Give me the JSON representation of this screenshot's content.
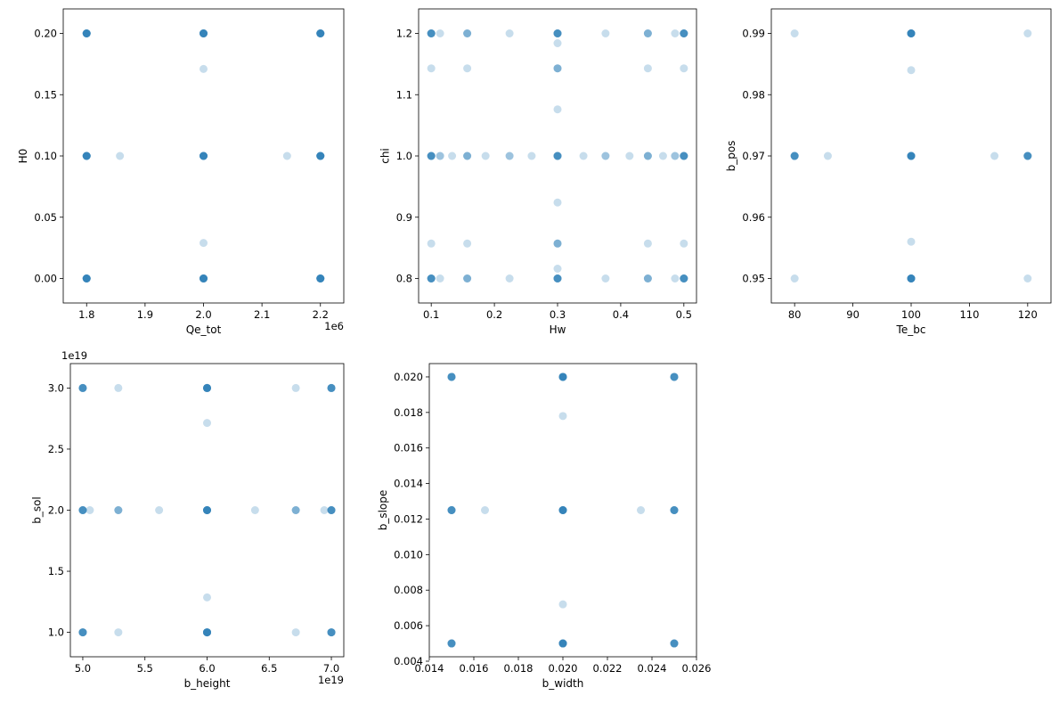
{
  "figure": {
    "background": "#ffffff",
    "marker_color": "#1f77b4",
    "marker_alpha": 0.25
  },
  "chart_data": [
    {
      "type": "scatter",
      "xlabel": "Qe_tot",
      "ylabel": "H0",
      "x_offset_label": "1e6",
      "xlim": [
        1.76,
        2.24
      ],
      "ylim": [
        -0.02,
        0.22
      ],
      "xticks": [
        1.8,
        1.9,
        2.0,
        2.1,
        2.2
      ],
      "xtick_labels": [
        "1.8",
        "1.9",
        "2.0",
        "2.1",
        "2.2"
      ],
      "yticks": [
        0.0,
        0.05,
        0.1,
        0.15,
        0.2
      ],
      "ytick_labels": [
        "0.00",
        "0.05",
        "0.10",
        "0.15",
        "0.20"
      ],
      "points": [
        {
          "x": 1.8,
          "y": 0.2,
          "n": 8
        },
        {
          "x": 1.8,
          "y": 0.1,
          "n": 8
        },
        {
          "x": 1.8,
          "y": 0.0,
          "n": 8
        },
        {
          "x": 2.0,
          "y": 0.2,
          "n": 8
        },
        {
          "x": 2.0,
          "y": 0.1,
          "n": 8
        },
        {
          "x": 2.0,
          "y": 0.0,
          "n": 8
        },
        {
          "x": 2.2,
          "y": 0.2,
          "n": 8
        },
        {
          "x": 2.2,
          "y": 0.1,
          "n": 8
        },
        {
          "x": 2.2,
          "y": 0.0,
          "n": 8
        },
        {
          "x": 1.857,
          "y": 0.1,
          "n": 1
        },
        {
          "x": 2.143,
          "y": 0.1,
          "n": 1
        },
        {
          "x": 2.0,
          "y": 0.171,
          "n": 1
        },
        {
          "x": 2.0,
          "y": 0.029,
          "n": 1
        }
      ]
    },
    {
      "type": "scatter",
      "xlabel": "Hw",
      "ylabel": "chi",
      "xlim": [
        0.08,
        0.52
      ],
      "ylim": [
        0.76,
        1.24
      ],
      "xticks": [
        0.1,
        0.2,
        0.3,
        0.4,
        0.5
      ],
      "xtick_labels": [
        "0.1",
        "0.2",
        "0.3",
        "0.4",
        "0.5"
      ],
      "yticks": [
        0.8,
        0.9,
        1.0,
        1.1,
        1.2
      ],
      "ytick_labels": [
        "0.8",
        "0.9",
        "1.0",
        "1.1",
        "1.2"
      ],
      "points": [
        {
          "x": 0.1,
          "y": 1.2,
          "n": 6
        },
        {
          "x": 0.1,
          "y": 1.0,
          "n": 6
        },
        {
          "x": 0.1,
          "y": 0.8,
          "n": 6
        },
        {
          "x": 0.3,
          "y": 1.2,
          "n": 6
        },
        {
          "x": 0.3,
          "y": 1.0,
          "n": 6
        },
        {
          "x": 0.3,
          "y": 0.8,
          "n": 6
        },
        {
          "x": 0.5,
          "y": 1.2,
          "n": 6
        },
        {
          "x": 0.5,
          "y": 1.0,
          "n": 6
        },
        {
          "x": 0.5,
          "y": 0.8,
          "n": 6
        },
        {
          "x": 0.157,
          "y": 1.2,
          "n": 3
        },
        {
          "x": 0.157,
          "y": 1.0,
          "n": 3
        },
        {
          "x": 0.157,
          "y": 0.8,
          "n": 3
        },
        {
          "x": 0.443,
          "y": 1.2,
          "n": 3
        },
        {
          "x": 0.443,
          "y": 1.0,
          "n": 3
        },
        {
          "x": 0.443,
          "y": 0.8,
          "n": 3
        },
        {
          "x": 0.3,
          "y": 1.143,
          "n": 3
        },
        {
          "x": 0.3,
          "y": 0.857,
          "n": 3
        },
        {
          "x": 0.1,
          "y": 1.143,
          "n": 1
        },
        {
          "x": 0.1,
          "y": 0.857,
          "n": 1
        },
        {
          "x": 0.5,
          "y": 1.143,
          "n": 1
        },
        {
          "x": 0.5,
          "y": 0.857,
          "n": 1
        },
        {
          "x": 0.157,
          "y": 1.143,
          "n": 1
        },
        {
          "x": 0.157,
          "y": 0.857,
          "n": 1
        },
        {
          "x": 0.443,
          "y": 1.143,
          "n": 1
        },
        {
          "x": 0.443,
          "y": 0.857,
          "n": 1
        },
        {
          "x": 0.114,
          "y": 1.2,
          "n": 1
        },
        {
          "x": 0.114,
          "y": 1.0,
          "n": 2
        },
        {
          "x": 0.114,
          "y": 0.8,
          "n": 1
        },
        {
          "x": 0.486,
          "y": 1.2,
          "n": 1
        },
        {
          "x": 0.486,
          "y": 1.0,
          "n": 2
        },
        {
          "x": 0.486,
          "y": 0.8,
          "n": 1
        },
        {
          "x": 0.224,
          "y": 1.2,
          "n": 1
        },
        {
          "x": 0.224,
          "y": 1.0,
          "n": 2
        },
        {
          "x": 0.224,
          "y": 0.8,
          "n": 1
        },
        {
          "x": 0.376,
          "y": 1.2,
          "n": 1
        },
        {
          "x": 0.376,
          "y": 1.0,
          "n": 2
        },
        {
          "x": 0.376,
          "y": 0.8,
          "n": 1
        },
        {
          "x": 0.133,
          "y": 1.0,
          "n": 1
        },
        {
          "x": 0.186,
          "y": 1.0,
          "n": 1
        },
        {
          "x": 0.259,
          "y": 1.0,
          "n": 1
        },
        {
          "x": 0.341,
          "y": 1.0,
          "n": 1
        },
        {
          "x": 0.414,
          "y": 1.0,
          "n": 1
        },
        {
          "x": 0.467,
          "y": 1.0,
          "n": 1
        },
        {
          "x": 0.3,
          "y": 1.184,
          "n": 1
        },
        {
          "x": 0.3,
          "y": 1.076,
          "n": 1
        },
        {
          "x": 0.3,
          "y": 0.924,
          "n": 1
        },
        {
          "x": 0.3,
          "y": 0.816,
          "n": 1
        }
      ]
    },
    {
      "type": "scatter",
      "xlabel": "Te_bc",
      "ylabel": "b_pos",
      "xlim": [
        76,
        124
      ],
      "ylim": [
        0.946,
        0.994
      ],
      "xticks": [
        80,
        90,
        100,
        110,
        120
      ],
      "xtick_labels": [
        "80",
        "90",
        "100",
        "110",
        "120"
      ],
      "yticks": [
        0.95,
        0.96,
        0.97,
        0.98,
        0.99
      ],
      "ytick_labels": [
        "0.95",
        "0.96",
        "0.97",
        "0.98",
        "0.99"
      ],
      "points": [
        {
          "x": 100,
          "y": 0.99,
          "n": 8
        },
        {
          "x": 100,
          "y": 0.97,
          "n": 8
        },
        {
          "x": 100,
          "y": 0.95,
          "n": 8
        },
        {
          "x": 80,
          "y": 0.97,
          "n": 6
        },
        {
          "x": 120,
          "y": 0.97,
          "n": 6
        },
        {
          "x": 80,
          "y": 0.99,
          "n": 1
        },
        {
          "x": 80,
          "y": 0.95,
          "n": 1
        },
        {
          "x": 120,
          "y": 0.99,
          "n": 1
        },
        {
          "x": 120,
          "y": 0.95,
          "n": 1
        },
        {
          "x": 85.7,
          "y": 0.97,
          "n": 1
        },
        {
          "x": 114.3,
          "y": 0.97,
          "n": 1
        },
        {
          "x": 100,
          "y": 0.984,
          "n": 1
        },
        {
          "x": 100,
          "y": 0.956,
          "n": 1
        }
      ]
    },
    {
      "type": "scatter",
      "xlabel": "b_height",
      "ylabel": "b_sol",
      "x_offset_label": "1e19",
      "y_offset_label": "1e19",
      "xlim": [
        4.9,
        7.1
      ],
      "ylim": [
        0.8,
        3.2
      ],
      "xticks": [
        5.0,
        5.5,
        6.0,
        6.5,
        7.0
      ],
      "xtick_labels": [
        "5.0",
        "5.5",
        "6.0",
        "6.5",
        "7.0"
      ],
      "yticks": [
        1.0,
        1.5,
        2.0,
        2.5,
        3.0
      ],
      "ytick_labels": [
        "1.0",
        "1.5",
        "2.0",
        "2.5",
        "3.0"
      ],
      "points": [
        {
          "x": 5.0,
          "y": 3.0,
          "n": 6
        },
        {
          "x": 5.0,
          "y": 2.0,
          "n": 6
        },
        {
          "x": 5.0,
          "y": 1.0,
          "n": 6
        },
        {
          "x": 6.0,
          "y": 3.0,
          "n": 8
        },
        {
          "x": 6.0,
          "y": 2.0,
          "n": 8
        },
        {
          "x": 6.0,
          "y": 1.0,
          "n": 8
        },
        {
          "x": 7.0,
          "y": 3.0,
          "n": 6
        },
        {
          "x": 7.0,
          "y": 2.0,
          "n": 6
        },
        {
          "x": 7.0,
          "y": 1.0,
          "n": 6
        },
        {
          "x": 5.286,
          "y": 3.0,
          "n": 1
        },
        {
          "x": 5.286,
          "y": 2.0,
          "n": 3
        },
        {
          "x": 5.286,
          "y": 1.0,
          "n": 1
        },
        {
          "x": 6.714,
          "y": 3.0,
          "n": 1
        },
        {
          "x": 6.714,
          "y": 2.0,
          "n": 3
        },
        {
          "x": 6.714,
          "y": 1.0,
          "n": 1
        },
        {
          "x": 5.057,
          "y": 2.0,
          "n": 1
        },
        {
          "x": 5.614,
          "y": 2.0,
          "n": 1
        },
        {
          "x": 6.386,
          "y": 2.0,
          "n": 1
        },
        {
          "x": 6.943,
          "y": 2.0,
          "n": 1
        },
        {
          "x": 6.0,
          "y": 2.714,
          "n": 1
        },
        {
          "x": 6.0,
          "y": 1.286,
          "n": 1
        }
      ]
    },
    {
      "type": "scatter",
      "xlabel": "b_width",
      "ylabel": "b_slope",
      "xlim": [
        0.014,
        0.026
      ],
      "ylim": [
        0.00425,
        0.02075
      ],
      "xticks": [
        0.014,
        0.016,
        0.018,
        0.02,
        0.022,
        0.024,
        0.026
      ],
      "xtick_labels": [
        "0.014",
        "0.016",
        "0.018",
        "0.020",
        "0.022",
        "0.024",
        "0.026"
      ],
      "yticks": [
        0.004,
        0.006,
        0.008,
        0.01,
        0.012,
        0.014,
        0.016,
        0.018,
        0.02
      ],
      "ytick_labels": [
        "0.004",
        "0.006",
        "0.008",
        "0.010",
        "0.012",
        "0.014",
        "0.016",
        "0.018",
        "0.020"
      ],
      "points": [
        {
          "x": 0.015,
          "y": 0.02,
          "n": 6
        },
        {
          "x": 0.015,
          "y": 0.0125,
          "n": 6
        },
        {
          "x": 0.015,
          "y": 0.005,
          "n": 6
        },
        {
          "x": 0.02,
          "y": 0.02,
          "n": 8
        },
        {
          "x": 0.02,
          "y": 0.0125,
          "n": 8
        },
        {
          "x": 0.02,
          "y": 0.005,
          "n": 8
        },
        {
          "x": 0.025,
          "y": 0.02,
          "n": 6
        },
        {
          "x": 0.025,
          "y": 0.0125,
          "n": 6
        },
        {
          "x": 0.025,
          "y": 0.005,
          "n": 6
        },
        {
          "x": 0.0165,
          "y": 0.0125,
          "n": 1
        },
        {
          "x": 0.0235,
          "y": 0.0125,
          "n": 1
        },
        {
          "x": 0.02,
          "y": 0.0178,
          "n": 1
        },
        {
          "x": 0.02,
          "y": 0.0072,
          "n": 1
        }
      ]
    }
  ]
}
